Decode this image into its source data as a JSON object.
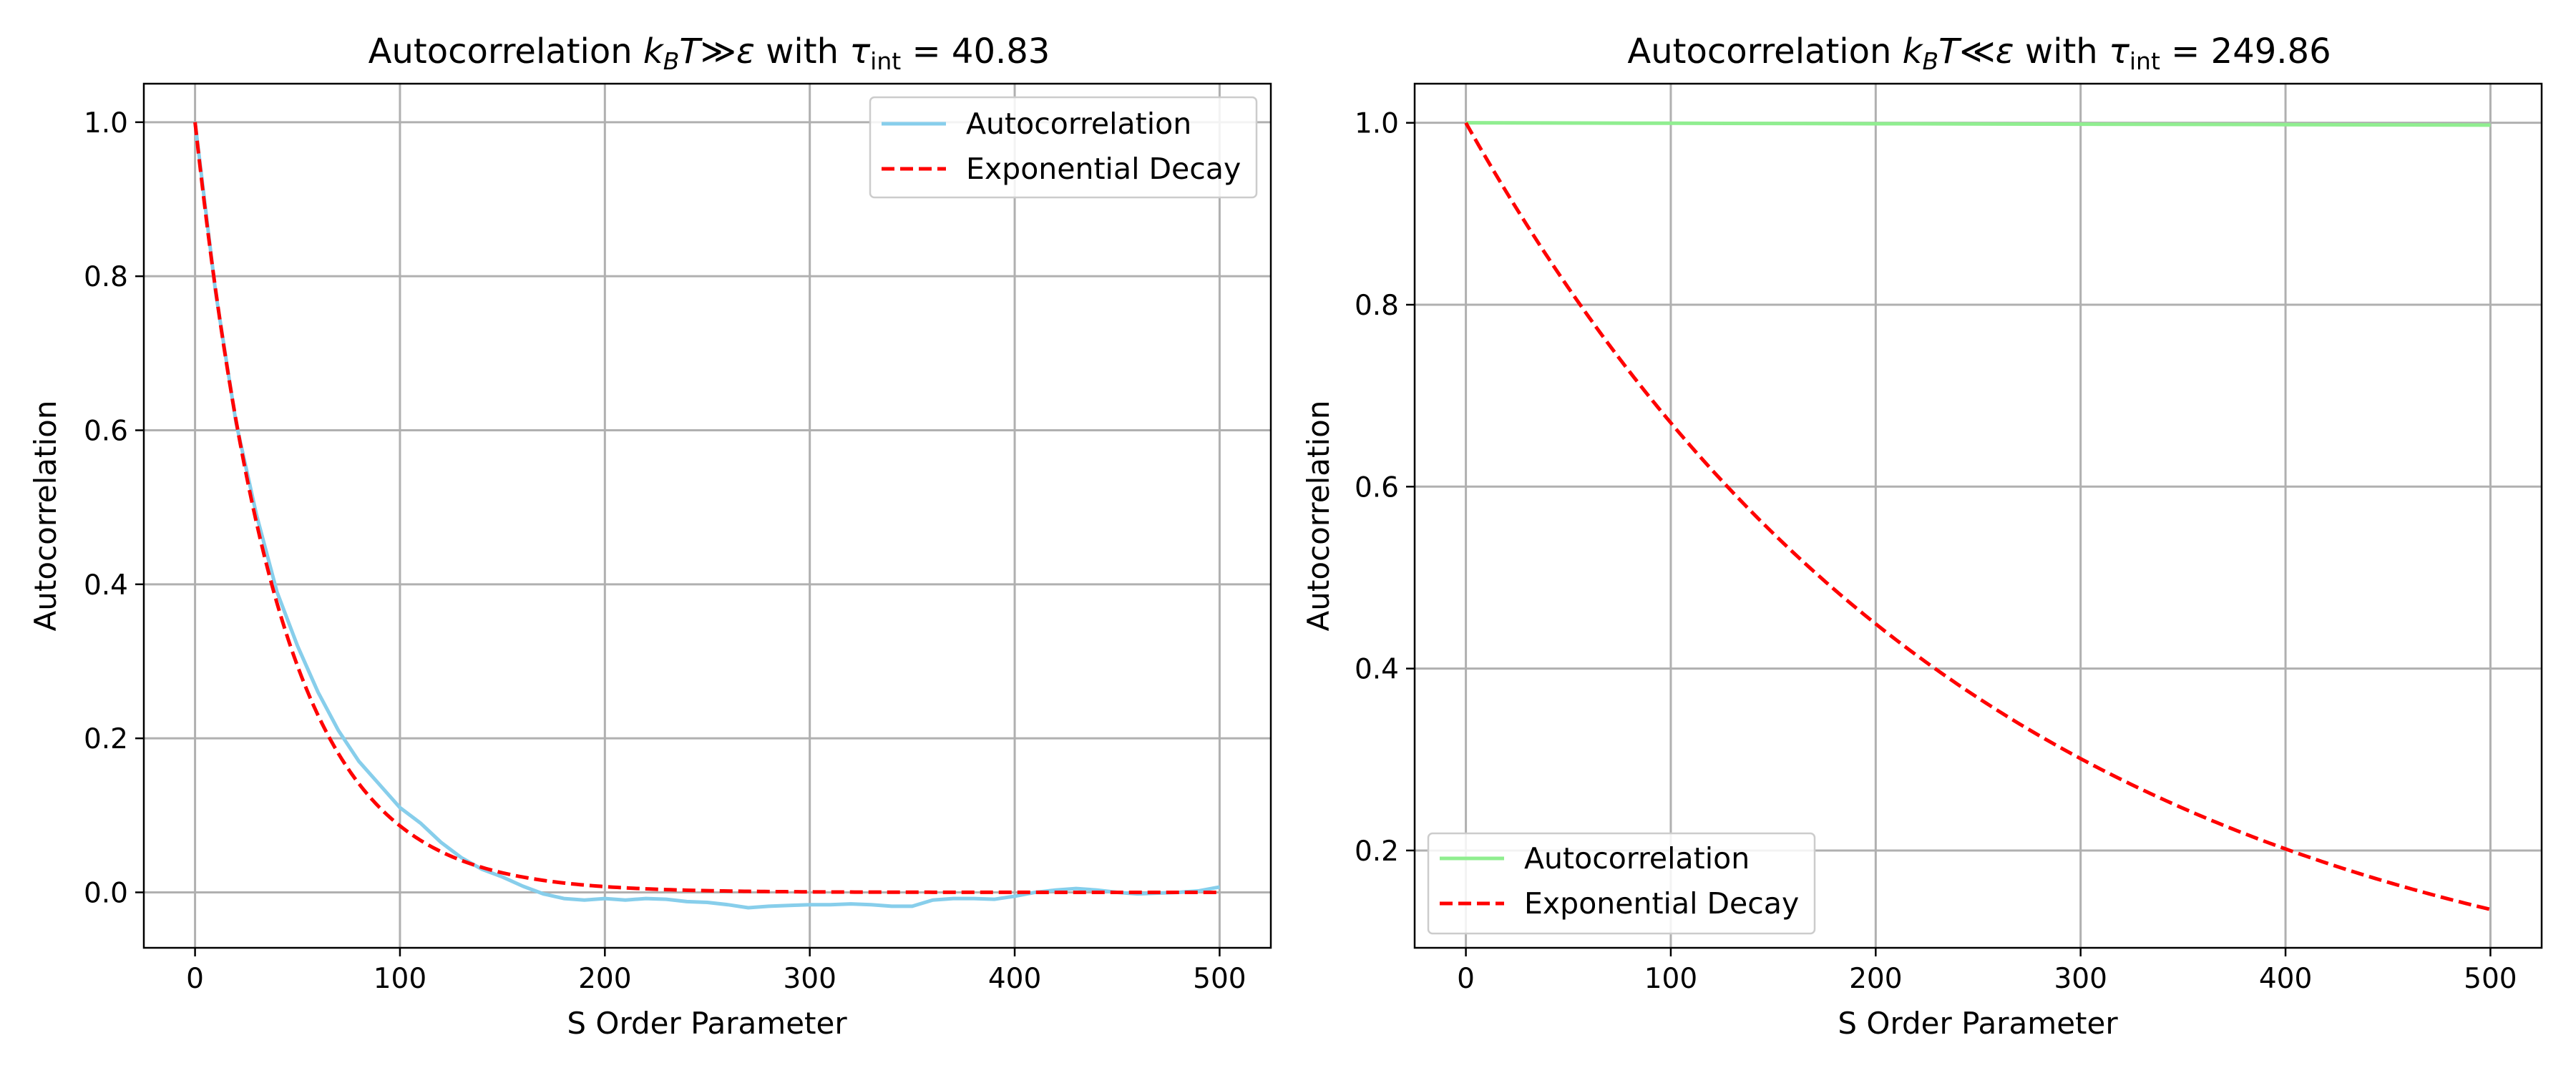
{
  "chart_data": [
    {
      "type": "line",
      "title_prefix": "Autocorrelation ",
      "title_math": {
        "k": "k",
        "sub": "B",
        "T": "T",
        "rel": "≫",
        "eps": "ε"
      },
      "title_mid": " with ",
      "title_tau": {
        "tau": "τ",
        "sub": "int",
        "eq": " = ",
        "value": "40.83"
      },
      "xlabel": "S Order Parameter",
      "ylabel": "Autocorrelation",
      "xlim": [
        -25,
        525
      ],
      "ylim": [
        -0.072,
        1.05
      ],
      "xticks": [
        0,
        100,
        200,
        300,
        400,
        500
      ],
      "xtick_labels": [
        "0",
        "100",
        "200",
        "300",
        "400",
        "500"
      ],
      "yticks": [
        0.0,
        0.2,
        0.4,
        0.6,
        0.8,
        1.0
      ],
      "ytick_labels": [
        "0.0",
        "0.2",
        "0.4",
        "0.6",
        "0.8",
        "1.0"
      ],
      "grid": true,
      "legend_position": "upper right",
      "series": [
        {
          "name": "Autocorrelation",
          "color": "#87ceeb",
          "style": "solid",
          "x": [
            0,
            10,
            20,
            30,
            40,
            50,
            60,
            70,
            80,
            90,
            100,
            110,
            120,
            130,
            140,
            150,
            160,
            170,
            180,
            190,
            200,
            210,
            220,
            230,
            240,
            250,
            260,
            270,
            280,
            290,
            300,
            310,
            320,
            330,
            340,
            350,
            360,
            370,
            380,
            390,
            400,
            410,
            420,
            430,
            440,
            450,
            460,
            470,
            480,
            490,
            500
          ],
          "y": [
            1.0,
            0.78,
            0.61,
            0.49,
            0.39,
            0.32,
            0.26,
            0.21,
            0.17,
            0.14,
            0.11,
            0.09,
            0.065,
            0.045,
            0.03,
            0.02,
            0.008,
            -0.002,
            -0.008,
            -0.01,
            -0.008,
            -0.01,
            -0.008,
            -0.009,
            -0.012,
            -0.013,
            -0.016,
            -0.02,
            -0.018,
            -0.017,
            -0.016,
            -0.016,
            -0.015,
            -0.016,
            -0.018,
            -0.018,
            -0.01,
            -0.008,
            -0.008,
            -0.009,
            -0.005,
            0.0,
            0.003,
            0.005,
            0.003,
            0.0,
            -0.002,
            -0.001,
            0.0,
            0.002,
            0.007
          ]
        },
        {
          "name": "Exponential Decay",
          "color": "#ff0000",
          "style": "dashed",
          "function": "exp(-x/tau)",
          "tau": 40.83,
          "x_range": [
            0,
            500
          ]
        }
      ]
    },
    {
      "type": "line",
      "title_prefix": "Autocorrelation ",
      "title_math": {
        "k": "k",
        "sub": "B",
        "T": "T",
        "rel": "≪",
        "eps": "ε"
      },
      "title_mid": " with ",
      "title_tau": {
        "tau": "τ",
        "sub": "int",
        "eq": " = ",
        "value": "249.86"
      },
      "xlabel": "S Order Parameter",
      "ylabel": "Autocorrelation",
      "xlim": [
        -25,
        525
      ],
      "ylim": [
        0.093,
        1.043
      ],
      "xticks": [
        0,
        100,
        200,
        300,
        400,
        500
      ],
      "xtick_labels": [
        "0",
        "100",
        "200",
        "300",
        "400",
        "500"
      ],
      "yticks": [
        0.2,
        0.4,
        0.6,
        0.8,
        1.0
      ],
      "ytick_labels": [
        "0.2",
        "0.4",
        "0.6",
        "0.8",
        "1.0"
      ],
      "grid": true,
      "legend_position": "lower left",
      "series": [
        {
          "name": "Autocorrelation",
          "color": "#90ee90",
          "style": "solid",
          "x": [
            0,
            100,
            200,
            300,
            400,
            500
          ],
          "y": [
            1.0,
            0.9995,
            0.999,
            0.9985,
            0.998,
            0.9975
          ]
        },
        {
          "name": "Exponential Decay",
          "color": "#ff0000",
          "style": "dashed",
          "function": "exp(-x/tau)",
          "tau": 249.86,
          "x_range": [
            0,
            500
          ]
        }
      ]
    }
  ]
}
